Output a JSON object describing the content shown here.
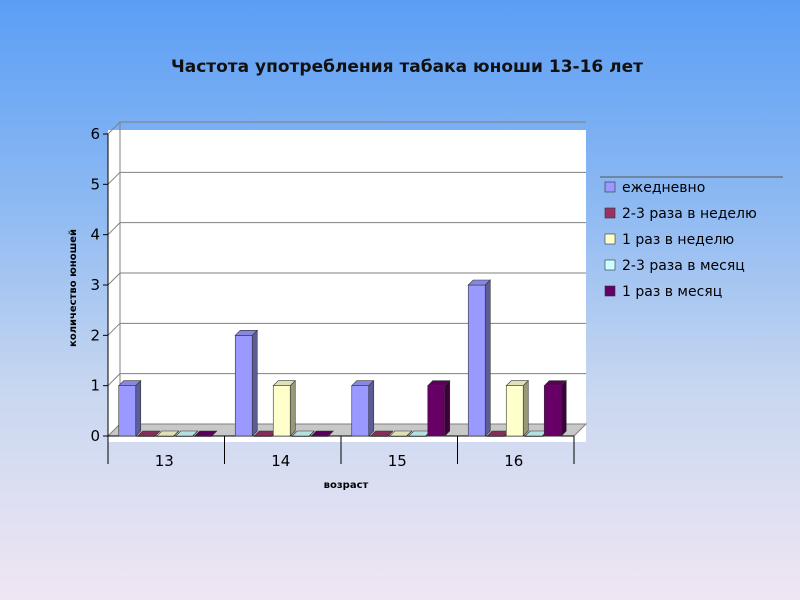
{
  "chart_data": {
    "type": "bar",
    "title": "Частота употребления табака юноши 13-16 лет",
    "xlabel": "возраст",
    "ylabel": "количество юношей",
    "categories": [
      "13",
      "14",
      "15",
      "16"
    ],
    "ylim": [
      0,
      6
    ],
    "yticks": [
      "0",
      "1",
      "2",
      "3",
      "4",
      "5",
      "6"
    ],
    "grid": true,
    "legend_position": "right",
    "series": [
      {
        "name": "ежедневно",
        "values": [
          1,
          2,
          1,
          3
        ],
        "color": "#9999ff"
      },
      {
        "name": "2-3 раза в неделю",
        "values": [
          0,
          0,
          0,
          0
        ],
        "color": "#993366"
      },
      {
        "name": "1 раз в неделю",
        "values": [
          0,
          1,
          0,
          1
        ],
        "color": "#ffffcc"
      },
      {
        "name": "2-3 раза в месяц",
        "values": [
          0,
          0,
          0,
          0
        ],
        "color": "#ccffff"
      },
      {
        "name": "1 раз в месяц",
        "values": [
          0,
          0,
          1,
          1
        ],
        "color": "#660066"
      }
    ]
  }
}
